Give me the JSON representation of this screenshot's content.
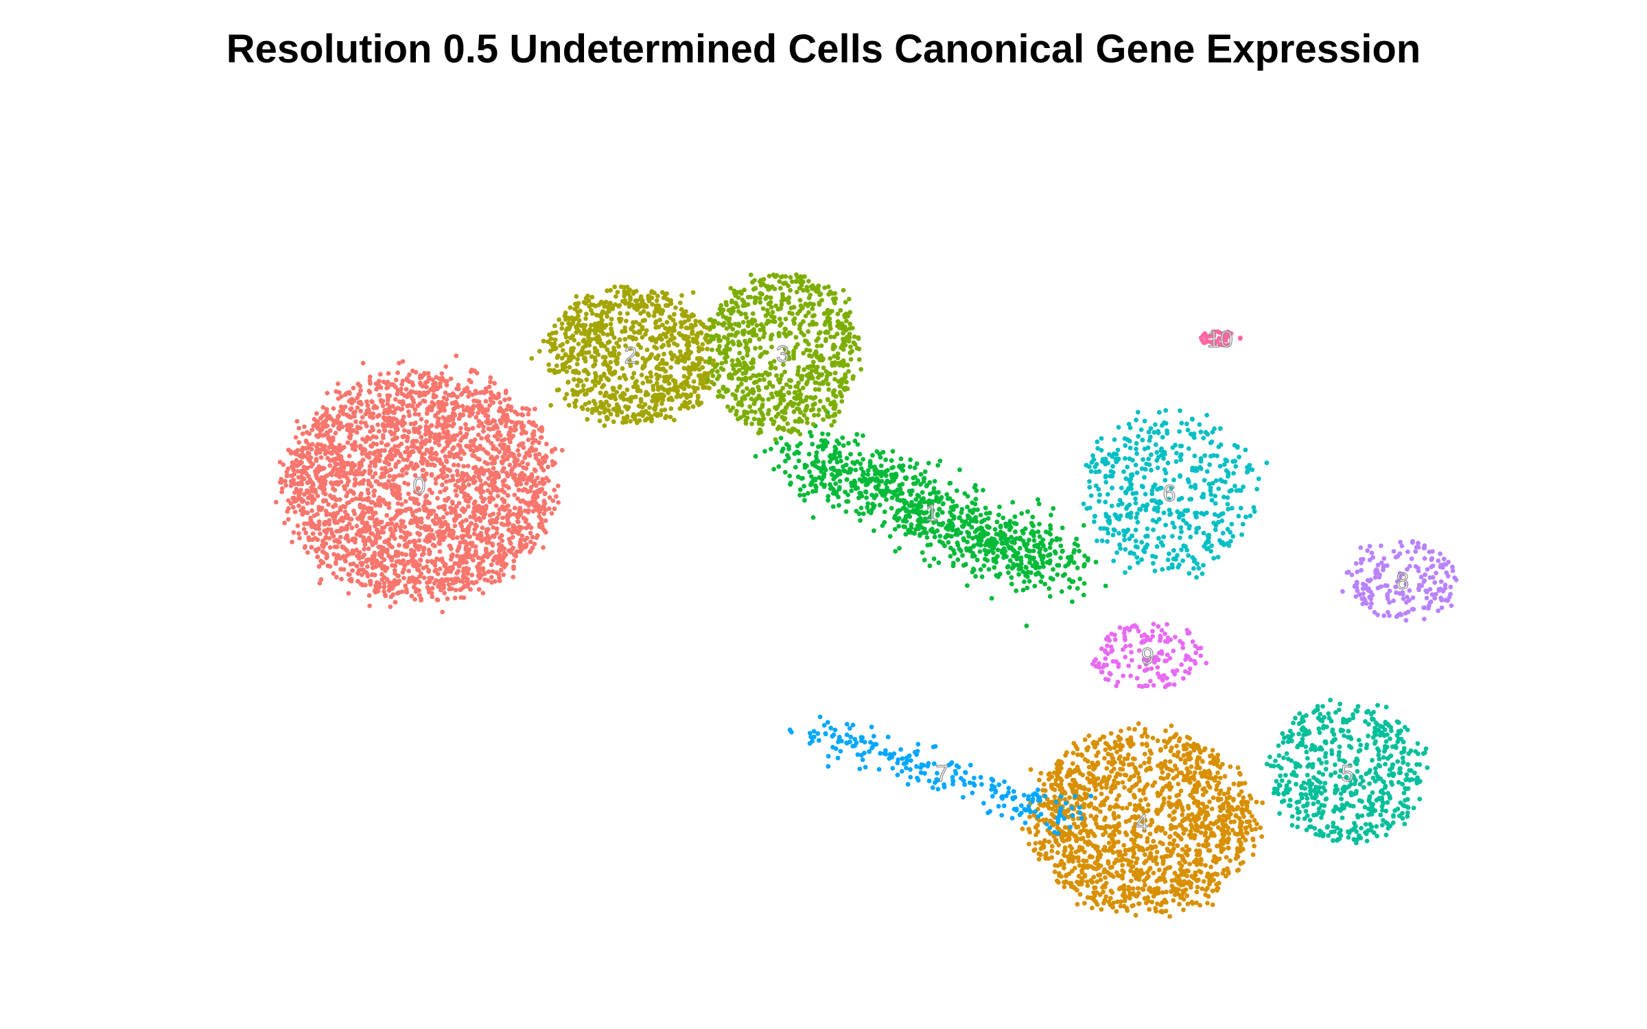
{
  "chart_data": {
    "type": "scatter",
    "title": "Resolution 0.5 Undetermined Cells Canonical Gene Expression",
    "xlabel": "",
    "ylabel": "",
    "xlim": [
      0,
      1000
    ],
    "ylim": [
      0,
      1000
    ],
    "axes_visible": false,
    "grid": false,
    "legend": "none",
    "clusters": [
      {
        "label": "0",
        "color": "#F8766D",
        "center": [
          209,
          429
        ],
        "spread": [
          175,
          260
        ],
        "count": 2700,
        "shape": "blob"
      },
      {
        "label": "1",
        "color": "#00BA38",
        "center": [
          563,
          462
        ],
        "spread": [
          110,
          95
        ],
        "count": 900,
        "shape": "band"
      },
      {
        "label": "2",
        "color": "#A3A500",
        "center": [
          355,
          270
        ],
        "spread": [
          110,
          160
        ],
        "count": 900,
        "shape": "blob"
      },
      {
        "label": "3",
        "color": "#7CAE00",
        "center": [
          460,
          268
        ],
        "spread": [
          100,
          190
        ],
        "count": 800,
        "shape": "blob"
      },
      {
        "label": "4",
        "color": "#D89000",
        "center": [
          708,
          840
        ],
        "spread": [
          145,
          210
        ],
        "count": 1500,
        "shape": "blob"
      },
      {
        "label": "5",
        "color": "#00BF9A",
        "center": [
          850,
          780
        ],
        "spread": [
          100,
          165
        ],
        "count": 550,
        "shape": "blob"
      },
      {
        "label": "6",
        "color": "#00BFC4",
        "center": [
          727,
          438
        ],
        "spread": [
          115,
          185
        ],
        "count": 480,
        "shape": "blob"
      },
      {
        "label": "7",
        "color": "#00A7FF",
        "center": [
          570,
          780
        ],
        "spread": [
          110,
          100
        ],
        "count": 220,
        "shape": "streak"
      },
      {
        "label": "8",
        "color": "#B983FF",
        "center": [
          888,
          545
        ],
        "spread": [
          75,
          90
        ],
        "count": 190,
        "shape": "blob"
      },
      {
        "label": "9",
        "color": "#E76BF3",
        "center": [
          712,
          637
        ],
        "spread": [
          75,
          75
        ],
        "count": 150,
        "shape": "blob"
      },
      {
        "label": "10",
        "color": "#FF67A4",
        "center": [
          762,
          250
        ],
        "spread": [
          28,
          18
        ],
        "count": 40,
        "shape": "blob"
      }
    ]
  }
}
